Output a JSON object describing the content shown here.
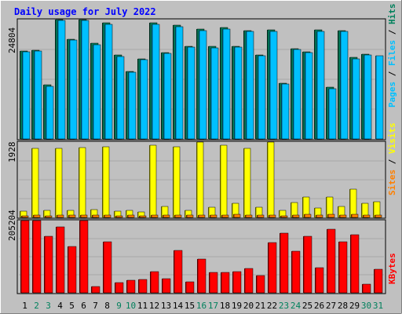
{
  "chart_data": {
    "type": "bar",
    "title": "Daily usage for July 2022",
    "categories": [
      "1",
      "2",
      "3",
      "4",
      "5",
      "6",
      "7",
      "8",
      "9",
      "10",
      "11",
      "12",
      "13",
      "14",
      "15",
      "16",
      "17",
      "18",
      "19",
      "20",
      "21",
      "22",
      "23",
      "24",
      "25",
      "26",
      "27",
      "28",
      "29",
      "30",
      "31"
    ],
    "weekend_days": [
      "2",
      "3",
      "9",
      "10",
      "16",
      "17",
      "23",
      "24",
      "30",
      "31"
    ],
    "panels": [
      {
        "name": "hits-files-pages",
        "scale_label": "24804",
        "ylim": [
          0,
          24804
        ],
        "right_label": [
          "Pages",
          "Files",
          "Hits"
        ],
        "series": [
          {
            "name": "Hits",
            "color": "#00805c",
            "values": [
              18300,
              18500,
              11200,
              24804,
              20800,
              24804,
              19900,
              24200,
              17400,
              14000,
              16700,
              24200,
              18000,
              23600,
              19300,
              22900,
              19200,
              23100,
              19300,
              22600,
              17500,
              22700,
              11600,
              18800,
              18100,
              22700,
              10700,
              22600,
              16900,
              17600,
              null
            ]
          },
          {
            "name": "Files",
            "color": "#00c0ff",
            "values": [
              18100,
              18300,
              10900,
              24700,
              20600,
              24700,
              19600,
              23900,
              17200,
              13800,
              16500,
              23900,
              17800,
              23300,
              19100,
              22600,
              19000,
              22800,
              19100,
              22400,
              17300,
              22400,
              11400,
              18600,
              17900,
              22400,
              10500,
              22300,
              16700,
              17400,
              17300
            ]
          },
          {
            "name": "Pages",
            "color": "#00c0ff",
            "values": [
              0,
              0,
              0,
              0,
              0,
              0,
              0,
              0,
              0,
              0,
              0,
              0,
              0,
              0,
              0,
              0,
              0,
              0,
              0,
              0,
              0,
              0,
              0,
              0,
              0,
              0,
              0,
              0,
              0,
              0,
              0
            ]
          }
        ]
      },
      {
        "name": "visits-sites",
        "scale_label": "1928",
        "ylim": [
          0,
          1928
        ],
        "right_label": [
          "Sites",
          "Visits"
        ],
        "series": [
          {
            "name": "Visits",
            "color": "#ffff00",
            "values": [
              160,
              1760,
              180,
              1760,
              180,
              1780,
              200,
              1800,
              160,
              190,
              150,
              1840,
              280,
              1800,
              190,
              1928,
              270,
              1840,
              360,
              1760,
              260,
              1928,
              190,
              390,
              520,
              240,
              520,
              290,
              730,
              360,
              400
            ]
          },
          {
            "name": "Sites",
            "color": "#ff8000",
            "values": [
              50,
              55,
              50,
              55,
              55,
              55,
              60,
              60,
              50,
              55,
              45,
              60,
              65,
              60,
              55,
              60,
              70,
              60,
              80,
              60,
              65,
              60,
              50,
              70,
              75,
              60,
              75,
              65,
              90,
              70,
              70
            ]
          }
        ]
      },
      {
        "name": "kbytes",
        "scale_label": "205204",
        "ylim": [
          0,
          205204
        ],
        "right_label": [
          "KBytes"
        ],
        "series": [
          {
            "name": "KBytes",
            "color": "#ff0000",
            "values": [
              205204,
              205204,
              160000,
              187000,
              132000,
              205204,
              18000,
              145000,
              30000,
              36000,
              38000,
              60000,
              40000,
              120000,
              32000,
              95000,
              57000,
              57000,
              60000,
              70000,
              49000,
              142000,
              170000,
              118000,
              160000,
              72000,
              180000,
              145000,
              164000,
              25000,
              68000
            ]
          }
        ]
      }
    ]
  }
}
